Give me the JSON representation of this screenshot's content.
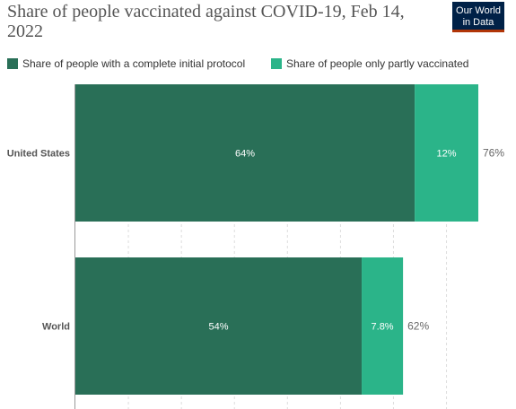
{
  "header": {
    "title": "Share of people vaccinated against COVID-19, Feb 14, 2022",
    "logo_line1": "Our World",
    "logo_line2": "in Data"
  },
  "colors": {
    "complete": "#296f57",
    "partial": "#2bb489",
    "grid": "#dddddd",
    "axis": "#999999",
    "total_label": "#666666",
    "category_label": "#555555"
  },
  "chart_data": {
    "type": "bar",
    "orientation": "horizontal",
    "stacked": true,
    "categories": [
      "United States",
      "World"
    ],
    "series": [
      {
        "name": "Share of people with a complete initial protocol",
        "values": [
          64,
          54
        ],
        "labels": [
          "64%",
          "54%"
        ]
      },
      {
        "name": "Share of people only partly vaccinated",
        "values": [
          12,
          7.8
        ],
        "labels": [
          "12%",
          "7.8%"
        ]
      }
    ],
    "totals": [
      "76%",
      "62%"
    ],
    "xlim": [
      0,
      76
    ],
    "grid": true,
    "legend": "top-left"
  }
}
